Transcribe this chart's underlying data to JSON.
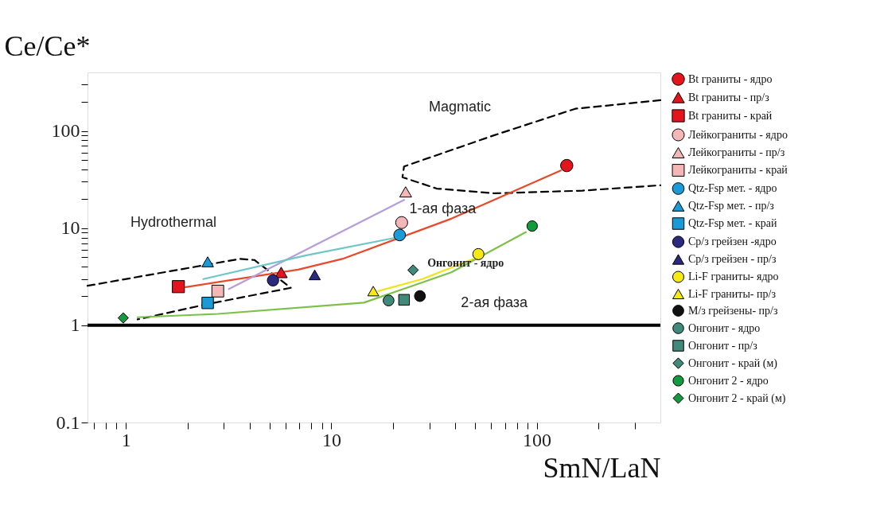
{
  "chart_data": {
    "type": "scatter",
    "log": "xy",
    "xlabel": "SmN/LaN",
    "ylabel": "Ce/Ce*",
    "xlim": [
      0.65,
      400
    ],
    "ylim": [
      0.1,
      400
    ],
    "xticks": [
      {
        "value": 0.7,
        "label": null
      },
      {
        "value": 0.8,
        "label": null
      },
      {
        "value": 0.9,
        "label": null
      },
      1,
      {
        "value": 2,
        "label": null
      },
      {
        "value": 3,
        "label": null
      },
      {
        "value": 4,
        "label": null
      },
      {
        "value": 5,
        "label": null
      },
      {
        "value": 6,
        "label": null
      },
      {
        "value": 7,
        "label": null
      },
      {
        "value": 8,
        "label": null
      },
      {
        "value": 9,
        "label": null
      },
      10,
      {
        "value": 20,
        "label": null
      },
      {
        "value": 30,
        "label": null
      },
      {
        "value": 40,
        "label": null
      },
      {
        "value": 50,
        "label": null
      },
      {
        "value": 60,
        "label": null
      },
      {
        "value": 70,
        "label": null
      },
      {
        "value": 80,
        "label": null
      },
      {
        "value": 90,
        "label": null
      },
      100,
      {
        "value": 200,
        "label": null
      },
      {
        "value": 300,
        "label": null
      }
    ],
    "yticks": [
      0.1,
      1,
      {
        "value": 2,
        "label": null
      },
      {
        "value": 3,
        "label": null
      },
      {
        "value": 4,
        "label": null
      },
      {
        "value": 5,
        "label": null
      },
      {
        "value": 6,
        "label": null
      },
      {
        "value": 7,
        "label": null
      },
      {
        "value": 8,
        "label": null
      },
      {
        "value": 9,
        "label": null
      },
      10,
      {
        "value": 20,
        "label": null
      },
      {
        "value": 30,
        "label": null
      },
      {
        "value": 40,
        "label": null
      },
      {
        "value": 50,
        "label": null
      },
      {
        "value": 60,
        "label": null
      },
      {
        "value": 70,
        "label": null
      },
      {
        "value": 80,
        "label": null
      },
      {
        "value": 90,
        "label": null
      },
      100,
      {
        "value": 200,
        "label": null
      },
      {
        "value": 300,
        "label": null
      }
    ],
    "grid": false,
    "legend": "right",
    "ref_lines": [
      {
        "axis": "y",
        "value": 1,
        "color": "#000000"
      }
    ],
    "annotations": [
      "Magmatic",
      "Hydrothermal",
      "1-ая фаза",
      "2-ая фаза",
      "Онгонит - ядро"
    ],
    "series": [
      {
        "type": "line",
        "color": "#000000",
        "line_style": "dashed",
        "x": [
          400,
          154,
          62.7,
          22.6,
          22.2,
          32.6,
          62.7,
          167,
          400
        ],
        "values": [
          207,
          169,
          90.9,
          43.1,
          33.4,
          25.5,
          22.8,
          24.3,
          27.6
        ]
      },
      {
        "type": "line",
        "color": "#000000",
        "line_style": "dashed",
        "x": [
          0.65,
          3.58,
          4.22,
          6.35,
          2.52,
          1.14
        ],
        "values": [
          2.55,
          4.82,
          4.7,
          2.43,
          1.66,
          1.15
        ]
      },
      {
        "type": "line",
        "color": "#e8492a",
        "line_style": "solid",
        "x": [
          131,
          38.4,
          11.3,
          6.89,
          1.95
        ],
        "values": [
          39.2,
          12.5,
          4.82,
          3.74,
          2.47
        ]
      },
      {
        "type": "line",
        "color": "#b39ddb",
        "line_style": "solid",
        "x": [
          22.6,
          9.56,
          3.17
        ],
        "values": [
          19.5,
          7.76,
          2.36
        ]
      },
      {
        "type": "line",
        "color": "#6ec6c8",
        "line_style": "solid",
        "x": [
          20.8,
          7.48,
          2.38
        ],
        "values": [
          8.0,
          5.22,
          2.99
        ]
      },
      {
        "type": "line",
        "color": "#f2e218",
        "line_style": "solid",
        "x": [
          49.1,
          27.7,
          16.9
        ],
        "values": [
          4.82,
          2.99,
          2.25
        ]
      },
      {
        "type": "line",
        "color": "#7cc04a",
        "line_style": "solid",
        "x": [
          88.5,
          38.4,
          14.4,
          2.8,
          1.14
        ],
        "values": [
          9.1,
          3.51,
          1.71,
          1.31,
          1.21
        ]
      },
      {
        "name": "Bt граниты - ядро",
        "marker": "circle",
        "color": "#e3141b",
        "x": [
          140
        ],
        "values": [
          44
        ]
      },
      {
        "name": "Bt граниты - пр/з",
        "marker": "triangle",
        "color": "#e3141b",
        "x": [
          5.7
        ],
        "values": [
          3.5
        ]
      },
      {
        "name": "Bt граниты - край",
        "marker": "square",
        "color": "#e3141b",
        "x": [
          1.8
        ],
        "values": [
          2.5
        ]
      },
      {
        "name": "Лейкограниты - ядро",
        "marker": "circle",
        "color": "#f4b6b6",
        "x": [
          22
        ],
        "values": [
          11.4
        ]
      },
      {
        "name": "Лейкограниты - пр/з",
        "marker": "triangle",
        "color": "#f4b6b6",
        "x": [
          23
        ],
        "values": [
          23.6
        ]
      },
      {
        "name": "Лейкограниты - край",
        "marker": "square",
        "color": "#f4b6b6",
        "x": [
          2.8
        ],
        "values": [
          2.25
        ]
      },
      {
        "name": "Qtz-Fsp мет. - ядро",
        "marker": "circle",
        "color": "#1a9ad6",
        "x": [
          21.5
        ],
        "values": [
          8.5
        ]
      },
      {
        "name": "Qtz-Fsp мет. - пр/з",
        "marker": "triangle",
        "color": "#1a9ad6",
        "x": [
          2.5
        ],
        "values": [
          4.5
        ]
      },
      {
        "name": "Qtz-Fsp мет. - край",
        "marker": "square",
        "color": "#1a9ad6",
        "x": [
          2.5
        ],
        "values": [
          1.7
        ]
      },
      {
        "name": "Ср/з грейзен -ядро",
        "marker": "circle",
        "color": "#2b2a7f",
        "x": [
          5.2
        ],
        "values": [
          2.9
        ]
      },
      {
        "name": "Ср/з грейзен - пр/з",
        "marker": "triangle",
        "color": "#2b2a7f",
        "x": [
          8.3
        ],
        "values": [
          3.3
        ]
      },
      {
        "name": "Li-F граниты- ядро",
        "marker": "circle",
        "color": "#f7e912",
        "x": [
          52
        ],
        "values": [
          5.4
        ]
      },
      {
        "name": "Li-F граниты- пр/з",
        "marker": "triangle",
        "color": "#f7e912",
        "x": [
          16
        ],
        "values": [
          2.25
        ]
      },
      {
        "name": "М/з грейзены- пр/з",
        "marker": "circle",
        "color": "#111111",
        "x": [
          27
        ],
        "values": [
          2.0
        ]
      },
      {
        "name": "Онгонит - ядро",
        "marker": "circle",
        "color": "#3f8a7a",
        "x": [
          19
        ],
        "values": [
          1.8
        ]
      },
      {
        "name": "Онгонит - пр/з",
        "marker": "square",
        "color": "#3f8a7a",
        "x": [
          22.6
        ],
        "values": [
          1.83
        ]
      },
      {
        "name": "Онгонит - край (м)",
        "marker": "diamond",
        "color": "#3f8a7a",
        "x": [
          25
        ],
        "values": [
          3.7
        ]
      },
      {
        "name": "Онгонит 2 - ядро",
        "marker": "circle",
        "color": "#119b3c",
        "x": [
          95
        ],
        "values": [
          10.5
        ]
      },
      {
        "name": "Онгонит 2 - край (м)",
        "marker": "diamond",
        "color": "#119b3c",
        "x": [
          0.97
        ],
        "values": [
          1.19
        ]
      }
    ]
  }
}
